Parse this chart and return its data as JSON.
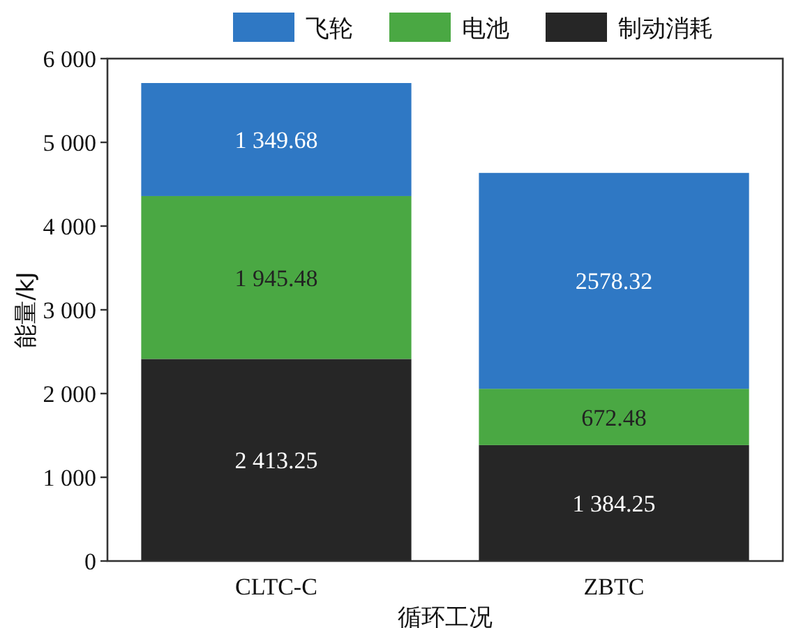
{
  "chart_data": {
    "type": "bar",
    "stacked": true,
    "xlabel": "循环工况",
    "ylabel": "能量/kJ",
    "categories": [
      "CLTC-C",
      "ZBTC"
    ],
    "series": [
      {
        "name": "制动消耗",
        "color": "#262626",
        "values": [
          2413.25,
          1384.25
        ],
        "value_labels": [
          "2 413.25",
          "1 384.25"
        ]
      },
      {
        "name": "电池",
        "color": "#4aa843",
        "values": [
          1945.48,
          672.48
        ],
        "value_labels": [
          "1 945.48",
          "672.48"
        ]
      },
      {
        "name": "飞轮",
        "color": "#2f78c4",
        "values": [
          1349.68,
          2578.32
        ],
        "value_labels": [
          "1 349.68",
          "2578.32"
        ]
      }
    ],
    "ylim": [
      0,
      6000
    ],
    "yticks": [
      {
        "value": 0,
        "label": "0"
      },
      {
        "value": 1000,
        "label": "1 000"
      },
      {
        "value": 2000,
        "label": "2 000"
      },
      {
        "value": 3000,
        "label": "3 000"
      },
      {
        "value": 4000,
        "label": "4 000"
      },
      {
        "value": 5000,
        "label": "5 000"
      },
      {
        "value": 6000,
        "label": "6 000"
      }
    ],
    "legend": "top",
    "grid": false
  }
}
